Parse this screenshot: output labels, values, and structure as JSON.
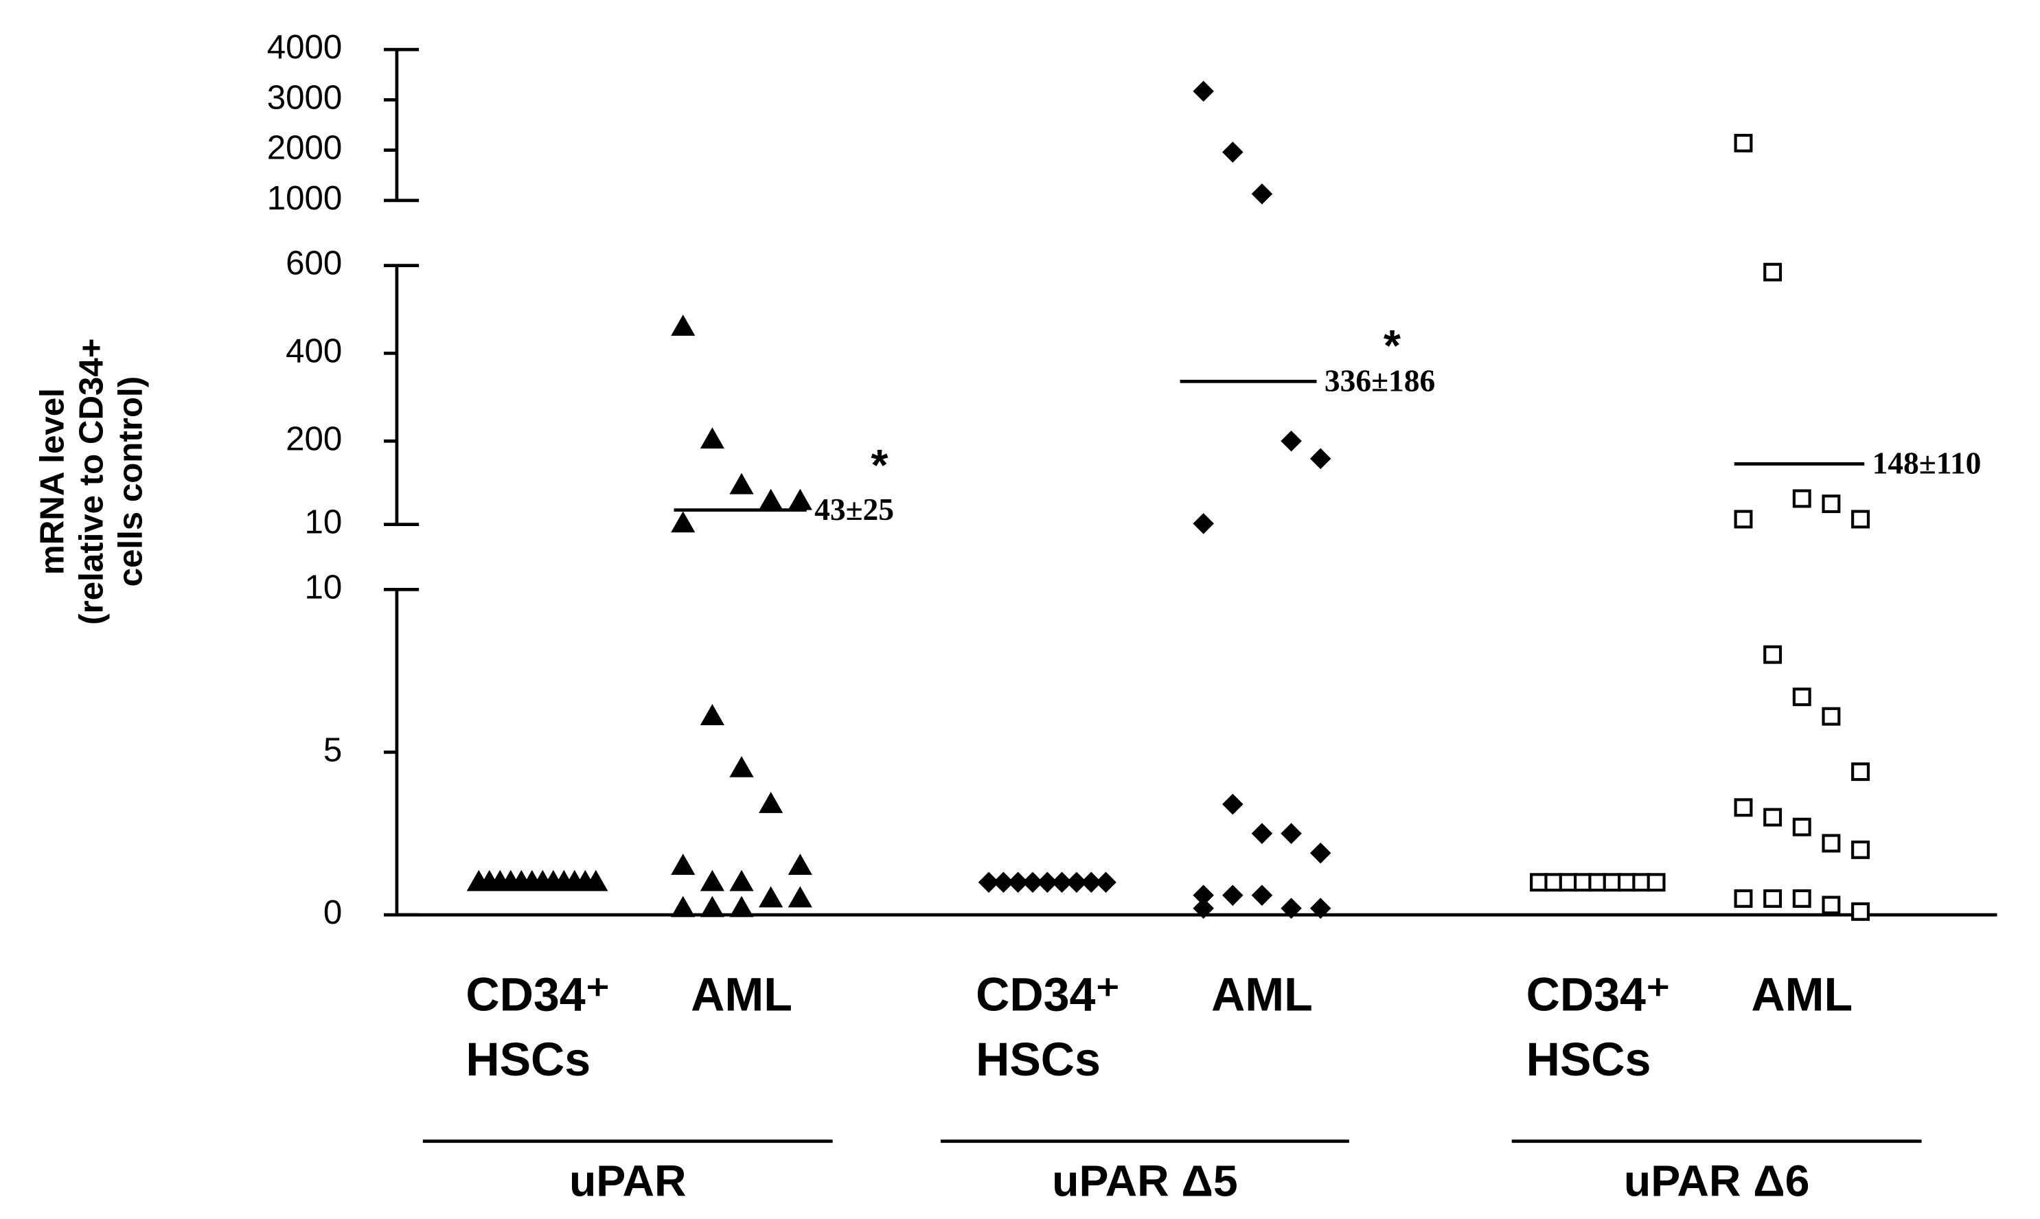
{
  "chart_data": {
    "type": "dot",
    "ylabel": [
      "mRNA level",
      "(relative to CD34+",
      "cells control)"
    ],
    "y_segments": [
      {
        "ylim": [
          0,
          10
        ],
        "yticks": [
          0,
          5,
          10
        ]
      },
      {
        "ylim": [
          10,
          600
        ],
        "yticks": [
          10,
          200,
          400,
          600
        ]
      },
      {
        "ylim": [
          1000,
          4000
        ],
        "yticks": [
          1000,
          2000,
          3000,
          4000
        ]
      }
    ],
    "color": "#000000",
    "groups": [
      {
        "name": "uPAR",
        "marker": "triangle",
        "filled": true,
        "categories": [
          [
            "CD34⁺",
            "HSCs"
          ],
          [
            "AML"
          ]
        ],
        "values": [
          [
            1,
            1,
            1,
            1,
            1,
            1,
            1,
            1,
            1,
            1,
            1,
            1
          ],
          [
            460,
            203,
            99,
            63,
            63,
            12,
            6.1,
            4.5,
            3.4,
            1.5,
            1.5,
            1.0,
            1.0,
            0.5,
            0.5,
            0.2,
            0.2,
            0.2
          ]
        ],
        "mean": 43,
        "mean_label": "43±25",
        "annotation": "*"
      },
      {
        "name": "uPAR Δ5",
        "marker": "diamond",
        "filled": true,
        "categories": [
          [
            "CD34⁺",
            "HSCs"
          ],
          [
            "AML"
          ]
        ],
        "values": [
          [
            1,
            1,
            1,
            1,
            1,
            1,
            1,
            1,
            1
          ],
          [
            3170,
            1960,
            1130,
            200,
            160,
            12,
            3.4,
            2.5,
            2.5,
            1.9,
            0.6,
            0.6,
            0.6,
            0.2,
            0.2,
            0.2
          ]
        ],
        "mean": 336,
        "mean_label": "336±186",
        "annotation": "*"
      },
      {
        "name": "uPAR Δ6",
        "marker": "square",
        "filled": false,
        "categories": [
          [
            "CD34⁺",
            "HSCs"
          ],
          [
            "AML"
          ]
        ],
        "values": [
          [
            1,
            1,
            1,
            1,
            1,
            1,
            1,
            1,
            1
          ],
          [
            2140,
            585,
            69,
            57,
            22,
            22,
            8.0,
            6.7,
            6.1,
            4.4,
            3.3,
            3.0,
            2.7,
            2.2,
            2.0,
            0.5,
            0.5,
            0.5,
            0.3,
            0.1
          ]
        ],
        "mean": 148,
        "mean_label": "148±110"
      }
    ]
  }
}
